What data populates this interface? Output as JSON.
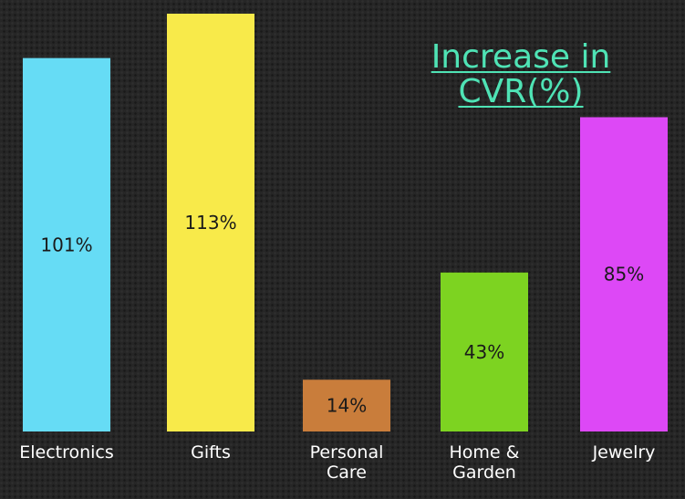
{
  "chart_data": {
    "type": "bar",
    "title_lines": [
      "Increase in",
      "CVR(%)"
    ],
    "categories": [
      [
        "Electronics"
      ],
      [
        "Gifts"
      ],
      [
        "Personal",
        "Care"
      ],
      [
        "Home &",
        "Garden"
      ],
      [
        "Jewelry"
      ]
    ],
    "values": [
      101,
      113,
      14,
      43,
      85
    ],
    "value_labels": [
      "101%",
      "113%",
      "14%",
      "43%",
      "85%"
    ],
    "colors": [
      "#66dcf5",
      "#f8ea4a",
      "#c97d3b",
      "#7dd321",
      "#dd48f6"
    ],
    "ylim": [
      0,
      113
    ],
    "grid": false,
    "legend": "none",
    "axes_visible": false
  },
  "colors": {
    "background": "#262626",
    "title": "#4fe3b5",
    "tick_text": "#ffffff",
    "bar_text": "#1a1a1a"
  }
}
